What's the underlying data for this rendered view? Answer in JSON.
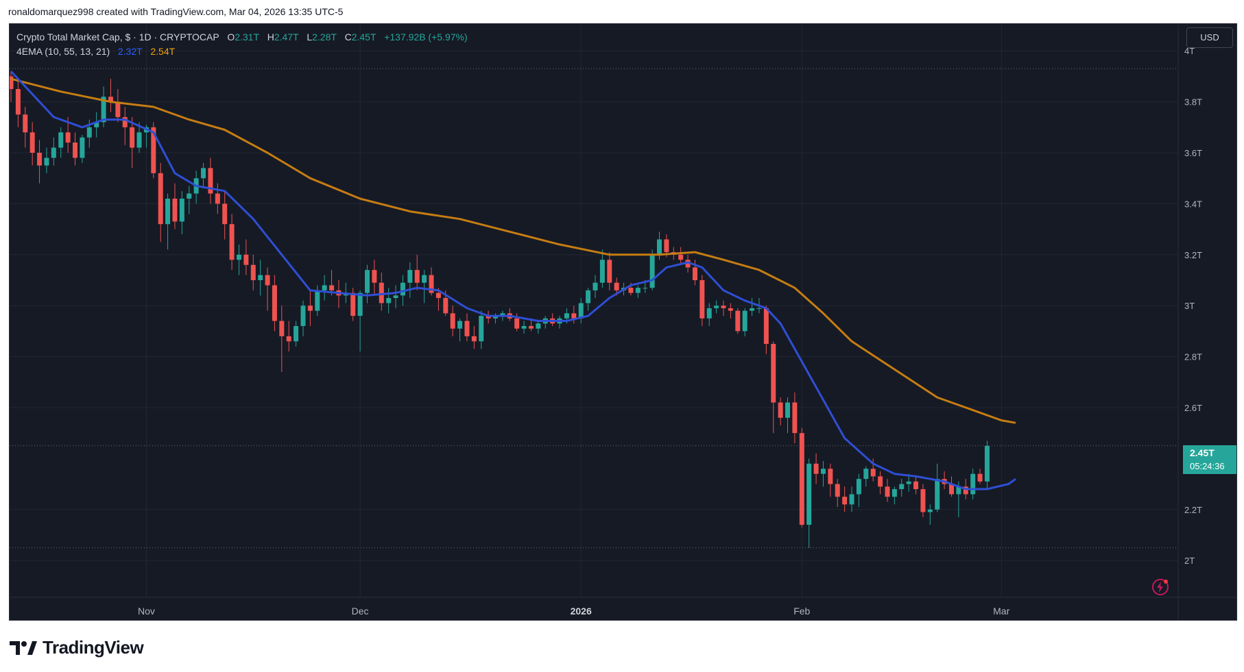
{
  "credit": "ronaldomarquez998 created with TradingView.com, Mar 04, 2026 13:35 UTC-5",
  "legend": {
    "symbol": "Crypto Total Market Cap, $ · 1D · CRYPTOCAP",
    "o_label": "O",
    "o": "2.31T",
    "h_label": "H",
    "h": "2.47T",
    "l_label": "L",
    "l": "2.28T",
    "c_label": "C",
    "c": "2.45T",
    "change": "+137.92B (+5.97%)",
    "indicator": "4EMA (10, 55, 13, 21)",
    "ema1": "2.32T",
    "ema2": "2.54T"
  },
  "currency": "USD",
  "price_badge": {
    "price": "2.45T",
    "countdown": "05:24:36"
  },
  "brand": "TradingView",
  "colors": {
    "up": "#26a69a",
    "down": "#ef5350",
    "ema_fast": "#2f4fd6",
    "ema_slow": "#c67d12",
    "background": "#161a25"
  },
  "chart_data": {
    "type": "candlestick",
    "title": "Crypto Total Market Cap, $ · 1D · CRYPTOCAP",
    "y_unit": "T USD",
    "ylim": [
      1.85,
      4.1
    ],
    "y_ticks": [
      {
        "v": 4.0,
        "label": "4T"
      },
      {
        "v": 3.8,
        "label": "3.8T"
      },
      {
        "v": 3.6,
        "label": "3.6T"
      },
      {
        "v": 3.4,
        "label": "3.4T"
      },
      {
        "v": 3.2,
        "label": "3.2T"
      },
      {
        "v": 3.0,
        "label": "3T"
      },
      {
        "v": 2.8,
        "label": "2.8T"
      },
      {
        "v": 2.6,
        "label": "2.6T"
      },
      {
        "v": 2.2,
        "label": "2.2T"
      },
      {
        "v": 2.0,
        "label": "2T"
      }
    ],
    "x_ticks": [
      {
        "date": "2025-11-01",
        "label": "Nov"
      },
      {
        "date": "2025-12-01",
        "label": "Dec"
      },
      {
        "date": "2026-01-01",
        "label": "2026",
        "bold": true
      },
      {
        "date": "2026-02-01",
        "label": "Feb"
      },
      {
        "date": "2026-03-01",
        "label": "Mar"
      }
    ],
    "dotted_levels": [
      3.93,
      2.45,
      2.05
    ],
    "start_date": "2025-10-13",
    "candles": [
      [
        3.9,
        3.92,
        3.8,
        3.85
      ],
      [
        3.85,
        3.88,
        3.7,
        3.75
      ],
      [
        3.75,
        3.78,
        3.62,
        3.68
      ],
      [
        3.68,
        3.72,
        3.55,
        3.6
      ],
      [
        3.6,
        3.65,
        3.48,
        3.55
      ],
      [
        3.55,
        3.62,
        3.52,
        3.58
      ],
      [
        3.58,
        3.66,
        3.55,
        3.62
      ],
      [
        3.62,
        3.7,
        3.58,
        3.68
      ],
      [
        3.68,
        3.74,
        3.6,
        3.64
      ],
      [
        3.64,
        3.68,
        3.55,
        3.58
      ],
      [
        3.58,
        3.67,
        3.56,
        3.66
      ],
      [
        3.66,
        3.73,
        3.62,
        3.7
      ],
      [
        3.7,
        3.76,
        3.66,
        3.72
      ],
      [
        3.72,
        3.86,
        3.7,
        3.82
      ],
      [
        3.82,
        3.89,
        3.76,
        3.8
      ],
      [
        3.8,
        3.85,
        3.72,
        3.74
      ],
      [
        3.74,
        3.78,
        3.63,
        3.7
      ],
      [
        3.7,
        3.74,
        3.54,
        3.62
      ],
      [
        3.62,
        3.72,
        3.6,
        3.68
      ],
      [
        3.68,
        3.71,
        3.62,
        3.7
      ],
      [
        3.7,
        3.72,
        3.5,
        3.52
      ],
      [
        3.52,
        3.56,
        3.25,
        3.32
      ],
      [
        3.32,
        3.44,
        3.22,
        3.42
      ],
      [
        3.42,
        3.48,
        3.3,
        3.33
      ],
      [
        3.33,
        3.45,
        3.28,
        3.42
      ],
      [
        3.42,
        3.47,
        3.36,
        3.44
      ],
      [
        3.44,
        3.53,
        3.4,
        3.5
      ],
      [
        3.5,
        3.56,
        3.46,
        3.54
      ],
      [
        3.54,
        3.58,
        3.4,
        3.44
      ],
      [
        3.44,
        3.48,
        3.36,
        3.4
      ],
      [
        3.4,
        3.45,
        3.26,
        3.32
      ],
      [
        3.32,
        3.36,
        3.14,
        3.18
      ],
      [
        3.18,
        3.24,
        3.12,
        3.2
      ],
      [
        3.2,
        3.26,
        3.12,
        3.16
      ],
      [
        3.16,
        3.2,
        3.06,
        3.1
      ],
      [
        3.1,
        3.18,
        3.04,
        3.12
      ],
      [
        3.12,
        3.15,
        2.98,
        3.08
      ],
      [
        3.08,
        3.12,
        2.9,
        2.94
      ],
      [
        2.94,
        3.0,
        2.74,
        2.88
      ],
      [
        2.88,
        2.94,
        2.82,
        2.86
      ],
      [
        2.86,
        2.94,
        2.84,
        2.92
      ],
      [
        2.92,
        3.02,
        2.88,
        3.0
      ],
      [
        3.0,
        3.06,
        2.92,
        2.98
      ],
      [
        2.98,
        3.08,
        2.96,
        3.06
      ],
      [
        3.06,
        3.12,
        3.02,
        3.08
      ],
      [
        3.08,
        3.14,
        3.04,
        3.06
      ],
      [
        3.06,
        3.1,
        2.99,
        3.04
      ],
      [
        3.04,
        3.09,
        3.01,
        3.05
      ],
      [
        3.05,
        3.07,
        2.94,
        2.96
      ],
      [
        2.96,
        3.06,
        2.82,
        3.05
      ],
      [
        3.05,
        3.16,
        3.01,
        3.14
      ],
      [
        3.14,
        3.18,
        3.04,
        3.09
      ],
      [
        3.09,
        3.13,
        2.98,
        3.01
      ],
      [
        3.01,
        3.07,
        2.97,
        3.03
      ],
      [
        3.03,
        3.08,
        2.99,
        3.04
      ],
      [
        3.04,
        3.12,
        3.0,
        3.09
      ],
      [
        3.09,
        3.17,
        3.03,
        3.14
      ],
      [
        3.14,
        3.2,
        3.06,
        3.09
      ],
      [
        3.09,
        3.14,
        3.01,
        3.12
      ],
      [
        3.12,
        3.15,
        3.04,
        3.05
      ],
      [
        3.05,
        3.07,
        2.98,
        3.03
      ],
      [
        3.03,
        3.06,
        2.96,
        2.97
      ],
      [
        2.97,
        3.0,
        2.88,
        2.91
      ],
      [
        2.91,
        2.95,
        2.86,
        2.94
      ],
      [
        2.94,
        2.97,
        2.86,
        2.88
      ],
      [
        2.88,
        2.92,
        2.83,
        2.86
      ],
      [
        2.86,
        2.98,
        2.83,
        2.96
      ],
      [
        2.96,
        2.98,
        2.93,
        2.95
      ],
      [
        2.95,
        2.97,
        2.93,
        2.96
      ],
      [
        2.96,
        2.98,
        2.94,
        2.97
      ],
      [
        2.97,
        2.99,
        2.94,
        2.95
      ],
      [
        2.95,
        2.97,
        2.9,
        2.91
      ],
      [
        2.91,
        2.94,
        2.89,
        2.92
      ],
      [
        2.92,
        2.95,
        2.9,
        2.91
      ],
      [
        2.91,
        2.94,
        2.89,
        2.93
      ],
      [
        2.93,
        2.96,
        2.91,
        2.95
      ],
      [
        2.95,
        2.97,
        2.92,
        2.93
      ],
      [
        2.93,
        2.96,
        2.91,
        2.95
      ],
      [
        2.95,
        2.99,
        2.93,
        2.97
      ],
      [
        2.97,
        3.0,
        2.93,
        2.95
      ],
      [
        2.95,
        3.03,
        2.93,
        3.01
      ],
      [
        3.01,
        3.07,
        2.98,
        3.06
      ],
      [
        3.06,
        3.12,
        3.03,
        3.09
      ],
      [
        3.09,
        3.22,
        3.07,
        3.18
      ],
      [
        3.18,
        3.21,
        3.06,
        3.09
      ],
      [
        3.09,
        3.11,
        3.04,
        3.06
      ],
      [
        3.06,
        3.09,
        3.04,
        3.07
      ],
      [
        3.07,
        3.09,
        3.04,
        3.05
      ],
      [
        3.05,
        3.08,
        3.03,
        3.07
      ],
      [
        3.07,
        3.1,
        3.05,
        3.07
      ],
      [
        3.07,
        3.22,
        3.06,
        3.2
      ],
      [
        3.2,
        3.29,
        3.18,
        3.26
      ],
      [
        3.26,
        3.28,
        3.19,
        3.21
      ],
      [
        3.21,
        3.23,
        3.18,
        3.2
      ],
      [
        3.2,
        3.23,
        3.16,
        3.18
      ],
      [
        3.18,
        3.2,
        3.13,
        3.15
      ],
      [
        3.15,
        3.18,
        3.08,
        3.1
      ],
      [
        3.1,
        3.12,
        2.92,
        2.95
      ],
      [
        2.95,
        3.01,
        2.92,
        2.99
      ],
      [
        2.99,
        3.02,
        2.97,
        3.0
      ],
      [
        3.0,
        3.02,
        2.96,
        2.99
      ],
      [
        2.99,
        3.01,
        2.95,
        2.98
      ],
      [
        2.98,
        2.99,
        2.89,
        2.9
      ],
      [
        2.9,
        2.99,
        2.88,
        2.98
      ],
      [
        2.98,
        3.03,
        2.96,
        2.99
      ],
      [
        2.99,
        3.03,
        2.97,
        2.99
      ],
      [
        2.99,
        3.0,
        2.81,
        2.85
      ],
      [
        2.85,
        2.86,
        2.5,
        2.62
      ],
      [
        2.62,
        2.64,
        2.53,
        2.56
      ],
      [
        2.56,
        2.64,
        2.5,
        2.62
      ],
      [
        2.62,
        2.66,
        2.46,
        2.5
      ],
      [
        2.5,
        2.52,
        2.13,
        2.14
      ],
      [
        2.14,
        2.4,
        2.05,
        2.38
      ],
      [
        2.38,
        2.42,
        2.3,
        2.34
      ],
      [
        2.34,
        2.39,
        2.29,
        2.36
      ],
      [
        2.36,
        2.38,
        2.25,
        2.3
      ],
      [
        2.3,
        2.32,
        2.21,
        2.25
      ],
      [
        2.25,
        2.29,
        2.19,
        2.22
      ],
      [
        2.22,
        2.29,
        2.19,
        2.26
      ],
      [
        2.26,
        2.34,
        2.21,
        2.32
      ],
      [
        2.32,
        2.37,
        2.29,
        2.36
      ],
      [
        2.36,
        2.4,
        2.31,
        2.33
      ],
      [
        2.33,
        2.35,
        2.26,
        2.29
      ],
      [
        2.29,
        2.32,
        2.23,
        2.25
      ],
      [
        2.25,
        2.29,
        2.22,
        2.28
      ],
      [
        2.28,
        2.32,
        2.25,
        2.3
      ],
      [
        2.3,
        2.34,
        2.27,
        2.31
      ],
      [
        2.31,
        2.33,
        2.26,
        2.28
      ],
      [
        2.28,
        2.3,
        2.17,
        2.19
      ],
      [
        2.19,
        2.22,
        2.14,
        2.2
      ],
      [
        2.2,
        2.38,
        2.19,
        2.32
      ],
      [
        2.32,
        2.35,
        2.28,
        2.3
      ],
      [
        2.3,
        2.33,
        2.25,
        2.26
      ],
      [
        2.26,
        2.31,
        2.17,
        2.29
      ],
      [
        2.29,
        2.32,
        2.24,
        2.26
      ],
      [
        2.26,
        2.36,
        2.24,
        2.34
      ],
      [
        2.34,
        2.36,
        2.3,
        2.31
      ],
      [
        2.31,
        2.47,
        2.28,
        2.45
      ]
    ],
    "ema_fast": [
      [
        0,
        3.92
      ],
      [
        3,
        3.83
      ],
      [
        6,
        3.74
      ],
      [
        10,
        3.7
      ],
      [
        13,
        3.73
      ],
      [
        16,
        3.73
      ],
      [
        20,
        3.68
      ],
      [
        23,
        3.52
      ],
      [
        26,
        3.47
      ],
      [
        30,
        3.45
      ],
      [
        34,
        3.34
      ],
      [
        38,
        3.2
      ],
      [
        42,
        3.06
      ],
      [
        46,
        3.05
      ],
      [
        50,
        3.04
      ],
      [
        54,
        3.05
      ],
      [
        57,
        3.07
      ],
      [
        60,
        3.06
      ],
      [
        64,
        2.99
      ],
      [
        67,
        2.96
      ],
      [
        70,
        2.96
      ],
      [
        74,
        2.94
      ],
      [
        78,
        2.94
      ],
      [
        81,
        2.96
      ],
      [
        84,
        3.03
      ],
      [
        87,
        3.08
      ],
      [
        90,
        3.1
      ],
      [
        92,
        3.15
      ],
      [
        95,
        3.17
      ],
      [
        97,
        3.15
      ],
      [
        100,
        3.06
      ],
      [
        103,
        3.02
      ],
      [
        106,
        2.99
      ],
      [
        108,
        2.93
      ],
      [
        111,
        2.78
      ],
      [
        114,
        2.63
      ],
      [
        117,
        2.48
      ],
      [
        121,
        2.38
      ],
      [
        124,
        2.34
      ],
      [
        127,
        2.33
      ],
      [
        131,
        2.31
      ],
      [
        134,
        2.28
      ],
      [
        137,
        2.28
      ],
      [
        140,
        2.3
      ],
      [
        141,
        2.32
      ]
    ],
    "ema_slow": [
      [
        0,
        3.89
      ],
      [
        7,
        3.84
      ],
      [
        14,
        3.8
      ],
      [
        20,
        3.78
      ],
      [
        25,
        3.73
      ],
      [
        30,
        3.69
      ],
      [
        36,
        3.6
      ],
      [
        42,
        3.5
      ],
      [
        49,
        3.42
      ],
      [
        56,
        3.37
      ],
      [
        63,
        3.34
      ],
      [
        70,
        3.29
      ],
      [
        77,
        3.24
      ],
      [
        84,
        3.2
      ],
      [
        91,
        3.2
      ],
      [
        96,
        3.21
      ],
      [
        100,
        3.18
      ],
      [
        105,
        3.14
      ],
      [
        110,
        3.07
      ],
      [
        114,
        2.97
      ],
      [
        118,
        2.86
      ],
      [
        124,
        2.75
      ],
      [
        130,
        2.64
      ],
      [
        135,
        2.59
      ],
      [
        139,
        2.55
      ],
      [
        141,
        2.54
      ]
    ]
  }
}
